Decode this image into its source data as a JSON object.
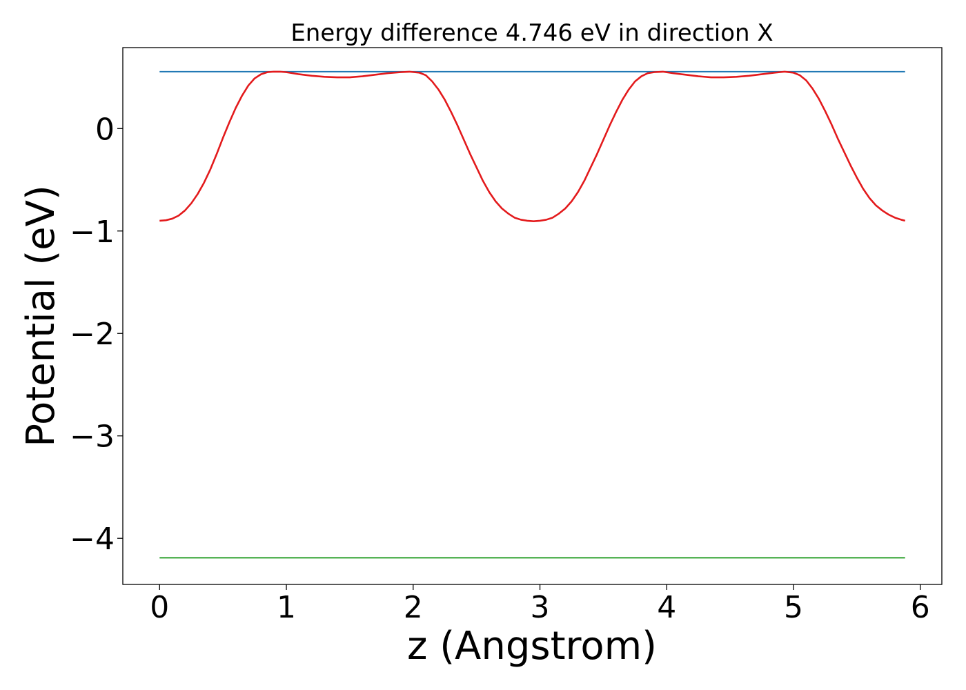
{
  "chart_data": {
    "type": "line",
    "title": "Energy difference 4.746 eV in direction X",
    "xlabel": "z (Angstrom)",
    "ylabel": "Potential (eV)",
    "xlim": [
      -0.29,
      6.17
    ],
    "ylim": [
      -4.45,
      0.79
    ],
    "xticks": [
      0,
      1,
      2,
      3,
      4,
      5,
      6
    ],
    "xtick_labels": [
      "0",
      "1",
      "2",
      "3",
      "4",
      "5",
      "6"
    ],
    "yticks": [
      0,
      -1,
      -2,
      -3,
      -4
    ],
    "ytick_labels": [
      "0",
      "−1",
      "−2",
      "−3",
      "−4"
    ],
    "grid": false,
    "colors": {
      "potential": "#e31a1c",
      "upper": "#1f77b4",
      "lower": "#2ca02c",
      "frame": "#000000"
    },
    "series": [
      {
        "x": [
          0.0,
          0.05,
          0.1,
          0.15,
          0.2,
          0.25,
          0.3,
          0.35,
          0.4,
          0.45,
          0.5,
          0.55,
          0.6,
          0.65,
          0.7,
          0.75,
          0.8,
          0.85,
          0.9,
          0.95,
          1.0,
          1.1,
          1.2,
          1.3,
          1.4,
          1.5,
          1.6,
          1.7,
          1.8,
          1.9,
          1.97,
          2.05,
          2.1,
          2.15,
          2.2,
          2.25,
          2.3,
          2.35,
          2.4,
          2.45,
          2.5,
          2.55,
          2.6,
          2.65,
          2.7,
          2.75,
          2.8,
          2.85,
          2.9,
          2.95,
          3.0,
          3.05,
          3.1,
          3.15,
          3.2,
          3.25,
          3.3,
          3.35,
          3.4,
          3.45,
          3.5,
          3.55,
          3.6,
          3.65,
          3.7,
          3.75,
          3.8,
          3.85,
          3.9,
          3.97,
          4.05,
          4.15,
          4.25,
          4.35,
          4.45,
          4.55,
          4.65,
          4.75,
          4.85,
          4.93,
          5.0,
          5.05,
          5.1,
          5.15,
          5.2,
          5.25,
          5.3,
          5.35,
          5.4,
          5.45,
          5.5,
          5.55,
          5.6,
          5.65,
          5.7,
          5.75,
          5.8,
          5.85,
          5.88
        ],
        "values": [
          -0.9,
          -0.895,
          -0.88,
          -0.85,
          -0.8,
          -0.73,
          -0.64,
          -0.53,
          -0.4,
          -0.25,
          -0.09,
          0.06,
          0.2,
          0.32,
          0.42,
          0.49,
          0.53,
          0.55,
          0.555,
          0.555,
          0.55,
          0.53,
          0.515,
          0.505,
          0.5,
          0.5,
          0.51,
          0.525,
          0.54,
          0.55,
          0.555,
          0.545,
          0.52,
          0.46,
          0.38,
          0.28,
          0.16,
          0.03,
          -0.11,
          -0.25,
          -0.38,
          -0.51,
          -0.62,
          -0.71,
          -0.78,
          -0.83,
          -0.87,
          -0.89,
          -0.9,
          -0.905,
          -0.9,
          -0.89,
          -0.87,
          -0.83,
          -0.78,
          -0.71,
          -0.62,
          -0.51,
          -0.38,
          -0.25,
          -0.11,
          0.03,
          0.16,
          0.28,
          0.38,
          0.46,
          0.51,
          0.54,
          0.55,
          0.555,
          0.54,
          0.525,
          0.51,
          0.5,
          0.5,
          0.505,
          0.515,
          0.53,
          0.545,
          0.555,
          0.545,
          0.52,
          0.47,
          0.39,
          0.29,
          0.17,
          0.04,
          -0.1,
          -0.23,
          -0.36,
          -0.48,
          -0.59,
          -0.68,
          -0.75,
          -0.8,
          -0.84,
          -0.87,
          -0.89,
          -0.9
        ]
      },
      {
        "x": [
          0.0,
          5.88
        ],
        "values": [
          0.555,
          0.555
        ]
      },
      {
        "x": [
          0.0,
          5.88
        ],
        "values": [
          -4.19,
          -4.19
        ]
      }
    ]
  }
}
